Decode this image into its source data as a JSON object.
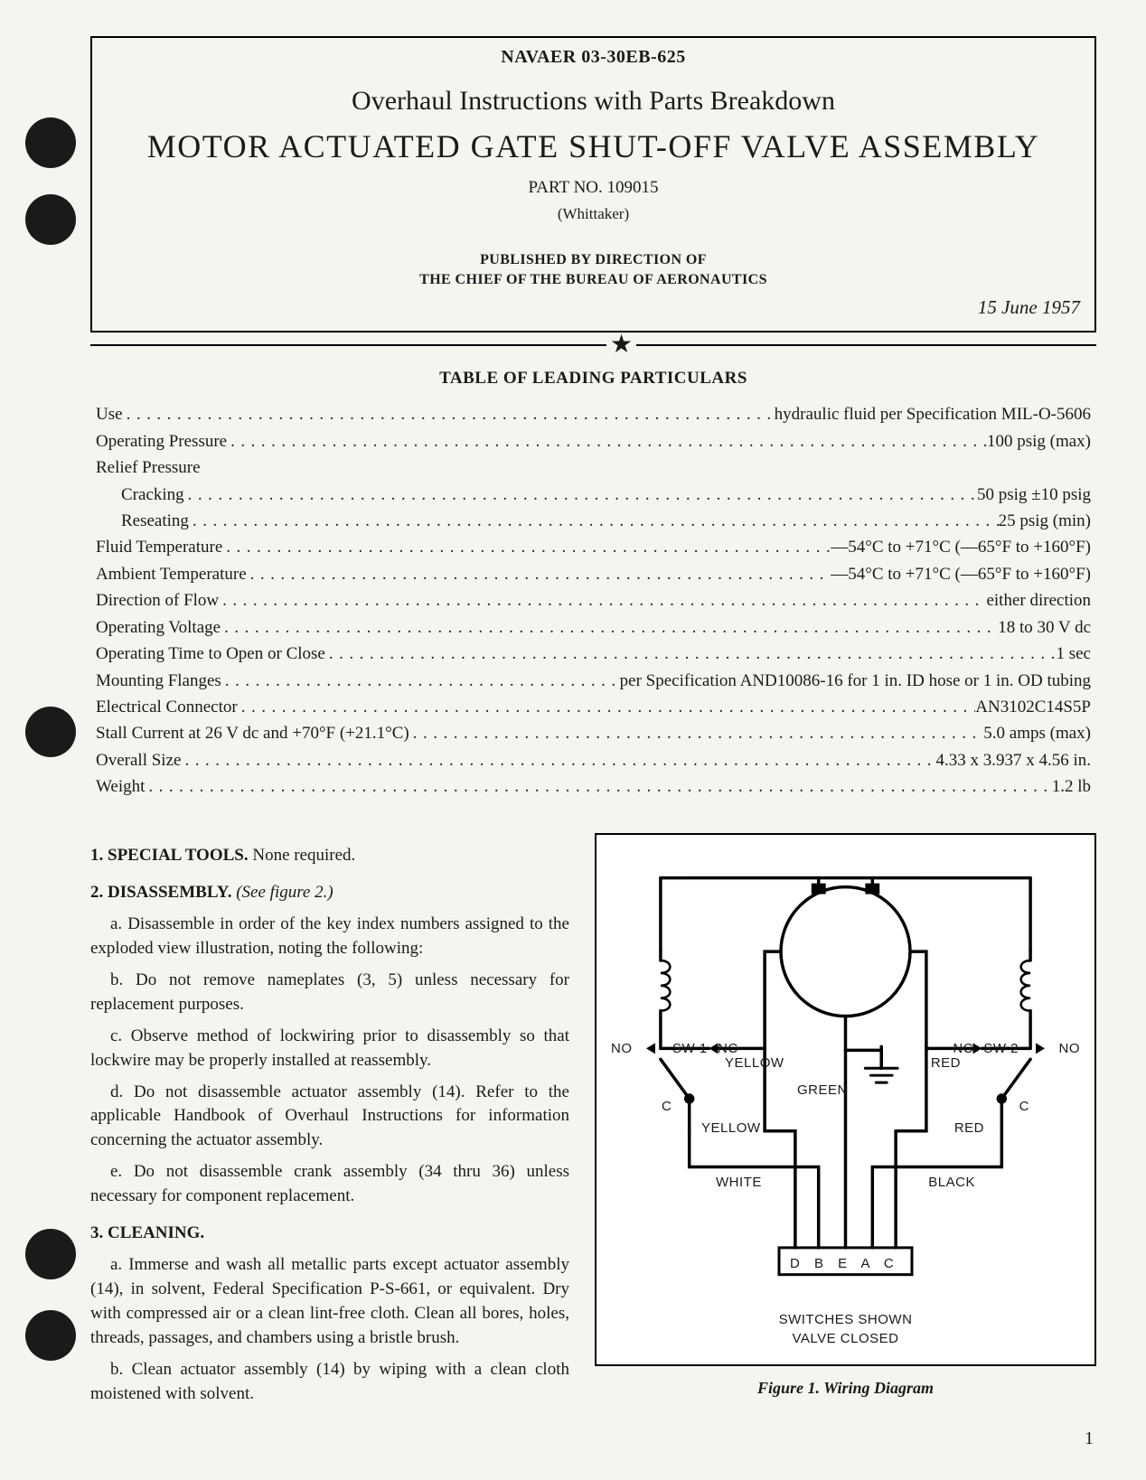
{
  "doc_id": "NAVAER 03-30EB-625",
  "title": "Overhaul Instructions with Parts Breakdown",
  "main_title": "MOTOR ACTUATED GATE SHUT-OFF VALVE ASSEMBLY",
  "part_no": "PART NO. 109015",
  "manufacturer": "(Whittaker)",
  "published_line1": "PUBLISHED BY DIRECTION OF",
  "published_line2": "THE CHIEF OF THE BUREAU OF AERONAUTICS",
  "doc_date": "15 June 1957",
  "particulars_head": "TABLE OF LEADING PARTICULARS",
  "particulars": [
    {
      "label": "Use",
      "value": "hydraulic fluid per Specification MIL-O-5606",
      "indent": false
    },
    {
      "label": "Operating Pressure",
      "value": "100 psig (max)",
      "indent": false
    },
    {
      "label": "Relief Pressure",
      "value": "",
      "indent": false,
      "nodots": true
    },
    {
      "label": "Cracking",
      "value": "50 psig ±10 psig",
      "indent": true
    },
    {
      "label": "Reseating",
      "value": "25 psig (min)",
      "indent": true
    },
    {
      "label": "Fluid Temperature",
      "value": "—54°C to +71°C (—65°F to +160°F)",
      "indent": false
    },
    {
      "label": "Ambient Temperature",
      "value": "—54°C to +71°C (—65°F to +160°F)",
      "indent": false
    },
    {
      "label": "Direction of Flow",
      "value": "either direction",
      "indent": false
    },
    {
      "label": "Operating Voltage",
      "value": "18 to 30 V dc",
      "indent": false
    },
    {
      "label": "Operating Time to Open or Close",
      "value": "1 sec",
      "indent": false
    },
    {
      "label": "Mounting Flanges",
      "value": "per Specification AND10086-16 for 1 in. ID hose or 1 in. OD tubing",
      "indent": false
    },
    {
      "label": "Electrical Connector",
      "value": "AN3102C14S5P",
      "indent": false
    },
    {
      "label": "Stall Current at 26 V dc and +70°F (+21.1°C)",
      "value": "5.0 amps (max)",
      "indent": false
    },
    {
      "label": "Overall Size",
      "value": "4.33 x 3.937 x 4.56 in.",
      "indent": false
    },
    {
      "label": "Weight",
      "value": "1.2 lb",
      "indent": false
    }
  ],
  "sections": {
    "s1": {
      "head": "1. SPECIAL TOOLS.",
      "rest": " None required."
    },
    "s2": {
      "head": "2. DISASSEMBLY.",
      "note": " (See figure 2.)",
      "a": "a. Disassemble in order of the key index numbers assigned to the exploded view illustration, noting the following:",
      "b": "b. Do not remove nameplates (3, 5) unless necessary for replacement purposes.",
      "c": "c. Observe method of lockwiring prior to disassembly so that lockwire may be properly installed at reassembly.",
      "d": "d. Do not disassemble actuator assembly (14). Refer to the applicable Handbook of Overhaul Instructions for information concerning the actuator assembly.",
      "e": "e. Do not disassemble crank assembly (34 thru 36) unless necessary for component replacement."
    },
    "s3": {
      "head": "3. CLEANING.",
      "a": "a. Immerse and wash all metallic parts except actuator assembly (14), in solvent, Federal Specification P-S-661, or equivalent. Dry with compressed air or a clean lint-free cloth. Clean all bores, holes, threads, passages, and chambers using a bristle brush.",
      "b": "b. Clean actuator assembly (14) by wiping with a clean cloth moistened with solvent."
    }
  },
  "figure": {
    "caption": "Figure 1.  Wiring Diagram",
    "labels": {
      "sw1": "SW 1",
      "sw2": "SW 2",
      "no_l": "NO",
      "nc_l": "NC",
      "c_l": "C",
      "no_r": "NO",
      "nc_r": "NC",
      "c_r": "C",
      "yellow1": "YELLOW",
      "yellow2": "YELLOW",
      "red1": "RED",
      "red2": "RED",
      "green": "GREEN",
      "white": "WHITE",
      "black": "BLACK",
      "terminals": "D  B  E  A  C"
    },
    "note1": "SWITCHES SHOWN",
    "note2": "VALVE CLOSED",
    "colors": {
      "stroke": "#000000",
      "stroke_bold": 3.5,
      "stroke_thin": 2.2,
      "fill_bg": "#ffffff"
    }
  },
  "page_num": "1"
}
